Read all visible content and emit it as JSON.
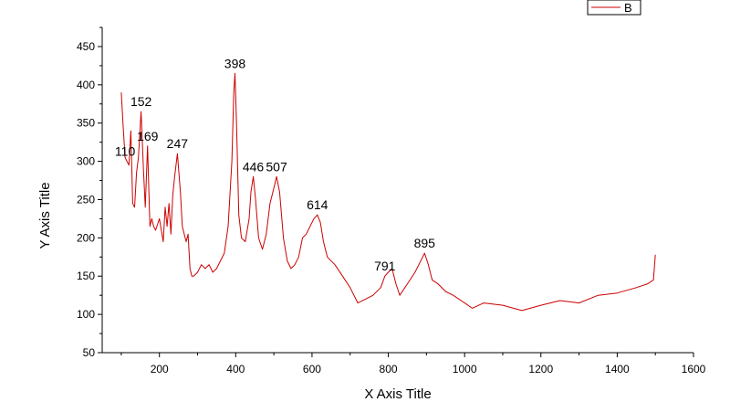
{
  "chart_data": {
    "type": "line",
    "xlabel": "X Axis Title",
    "ylabel": "Y Axis Title",
    "xlim": [
      50,
      1600
    ],
    "ylim": [
      50,
      475
    ],
    "xticks": [
      200,
      400,
      600,
      800,
      1000,
      1200,
      1400,
      1600
    ],
    "yticks": [
      50,
      100,
      150,
      200,
      250,
      300,
      350,
      400,
      450
    ],
    "grid": false,
    "legend_position": "top-right",
    "colors": {
      "series": "#cc0000",
      "axis": "#000000"
    },
    "series": [
      {
        "name": "B",
        "x": [
          100,
          105,
          110,
          115,
          120,
          125,
          130,
          135,
          140,
          145,
          152,
          158,
          163,
          169,
          175,
          180,
          185,
          190,
          200,
          210,
          215,
          220,
          225,
          230,
          235,
          240,
          247,
          255,
          260,
          265,
          270,
          275,
          280,
          285,
          290,
          300,
          310,
          320,
          330,
          340,
          350,
          360,
          370,
          380,
          390,
          395,
          398,
          402,
          408,
          415,
          425,
          435,
          440,
          446,
          452,
          460,
          470,
          480,
          490,
          500,
          507,
          515,
          525,
          535,
          545,
          555,
          565,
          575,
          585,
          595,
          605,
          614,
          622,
          630,
          640,
          660,
          680,
          700,
          720,
          740,
          760,
          780,
          791,
          800,
          810,
          820,
          830,
          850,
          870,
          880,
          895,
          905,
          915,
          930,
          950,
          970,
          1000,
          1020,
          1050,
          1100,
          1150,
          1200,
          1250,
          1300,
          1350,
          1400,
          1450,
          1480,
          1495,
          1500
        ],
        "y": [
          390,
          345,
          305,
          300,
          295,
          340,
          245,
          240,
          285,
          305,
          365,
          290,
          240,
          320,
          215,
          225,
          215,
          210,
          225,
          195,
          240,
          215,
          245,
          205,
          255,
          280,
          310,
          260,
          215,
          205,
          195,
          205,
          160,
          150,
          150,
          155,
          165,
          160,
          165,
          155,
          160,
          170,
          180,
          215,
          300,
          390,
          415,
          350,
          230,
          200,
          195,
          225,
          260,
          280,
          250,
          200,
          185,
          205,
          245,
          265,
          280,
          260,
          200,
          170,
          160,
          165,
          175,
          200,
          205,
          215,
          225,
          230,
          220,
          195,
          175,
          165,
          150,
          135,
          115,
          120,
          125,
          135,
          150,
          155,
          160,
          140,
          125,
          140,
          155,
          165,
          180,
          165,
          145,
          140,
          130,
          125,
          115,
          108,
          115,
          112,
          105,
          112,
          118,
          115,
          125,
          128,
          135,
          140,
          145,
          178
        ]
      }
    ],
    "annotations": [
      {
        "x": 110,
        "y": 300,
        "text": "110"
      },
      {
        "x": 152,
        "y": 365,
        "text": "152"
      },
      {
        "x": 169,
        "y": 320,
        "text": "169"
      },
      {
        "x": 247,
        "y": 310,
        "text": "247"
      },
      {
        "x": 398,
        "y": 415,
        "text": "398"
      },
      {
        "x": 446,
        "y": 280,
        "text": "446"
      },
      {
        "x": 507,
        "y": 280,
        "text": "507"
      },
      {
        "x": 614,
        "y": 230,
        "text": "614"
      },
      {
        "x": 791,
        "y": 150,
        "text": "791"
      },
      {
        "x": 895,
        "y": 180,
        "text": "895"
      }
    ]
  }
}
